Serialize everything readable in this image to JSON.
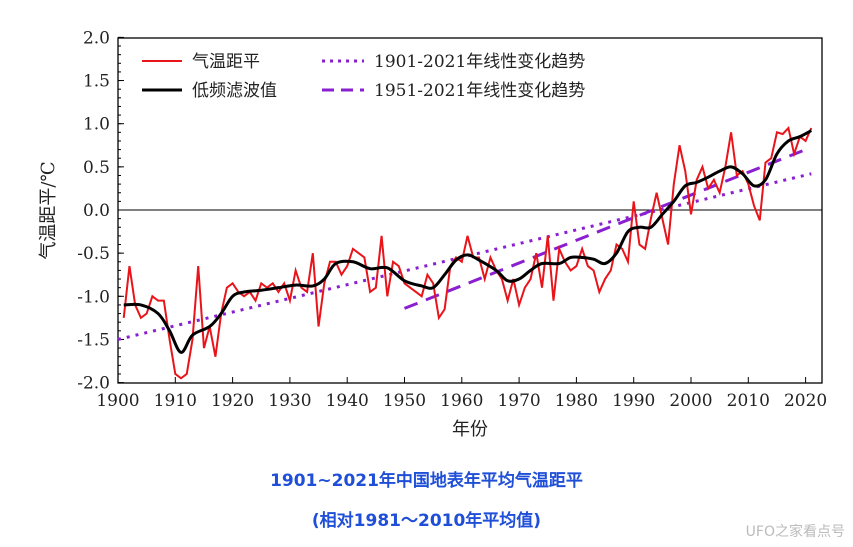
{
  "chart_data": {
    "type": "line",
    "xlabel": "年份",
    "ylabel": "气温距平/℃",
    "xlim": [
      1900,
      2022
    ],
    "ylim": [
      -2.0,
      2.0
    ],
    "xticks": [
      1900,
      1910,
      1920,
      1930,
      1940,
      1950,
      1960,
      1970,
      1980,
      1990,
      2000,
      2010,
      2020
    ],
    "yticks": [
      "2.0",
      "1.5",
      "1.0",
      "0.5",
      "0.0",
      "-0.5",
      "-1.0",
      "-1.5",
      "-2.0"
    ],
    "legend_position": "top-left",
    "colors": {
      "anomaly": "#e8141a",
      "smooth": "#000000",
      "trend": "#8a1fcf",
      "caption": "#1f4fd8"
    },
    "series": [
      {
        "name": "气温距平",
        "style": "solid-red",
        "x_start": 1901,
        "values": [
          -1.25,
          -0.65,
          -1.1,
          -1.25,
          -1.2,
          -1.0,
          -1.05,
          -1.05,
          -1.5,
          -1.9,
          -1.95,
          -1.9,
          -1.5,
          -0.65,
          -1.6,
          -1.35,
          -1.7,
          -1.2,
          -0.9,
          -0.85,
          -0.95,
          -1.0,
          -0.95,
          -1.05,
          -0.85,
          -0.9,
          -0.85,
          -0.95,
          -0.85,
          -1.05,
          -0.7,
          -0.9,
          -0.95,
          -0.5,
          -1.35,
          -0.85,
          -0.6,
          -0.6,
          -0.75,
          -0.65,
          -0.45,
          -0.5,
          -0.55,
          -0.95,
          -0.9,
          -0.3,
          -1.0,
          -0.6,
          -0.65,
          -0.85,
          -0.9,
          -0.95,
          -1.0,
          -0.75,
          -0.85,
          -1.25,
          -1.15,
          -0.65,
          -0.55,
          -0.6,
          -0.3,
          -0.55,
          -0.55,
          -0.8,
          -0.55,
          -0.7,
          -0.8,
          -1.05,
          -0.8,
          -1.1,
          -0.9,
          -0.8,
          -0.5,
          -0.9,
          -0.3,
          -1.05,
          -0.45,
          -0.6,
          -0.7,
          -0.65,
          -0.45,
          -0.65,
          -0.7,
          -0.95,
          -0.8,
          -0.7,
          -0.4,
          -0.45,
          -0.6,
          0.1,
          -0.4,
          -0.45,
          -0.1,
          0.2,
          -0.1,
          -0.4,
          0.3,
          0.75,
          0.45,
          -0.05,
          0.35,
          0.5,
          0.25,
          0.35,
          0.2,
          0.5,
          0.9,
          0.4,
          0.45,
          0.3,
          0.05,
          -0.12,
          0.55,
          0.6,
          0.9,
          0.88,
          0.95,
          0.65,
          0.85,
          0.8,
          0.95
        ]
      },
      {
        "name": "低频滤波值",
        "style": "solid-black",
        "points": [
          [
            1901,
            -1.1
          ],
          [
            1904,
            -1.1
          ],
          [
            1907,
            -1.2
          ],
          [
            1909,
            -1.4
          ],
          [
            1911,
            -1.65
          ],
          [
            1913,
            -1.45
          ],
          [
            1916,
            -1.35
          ],
          [
            1918,
            -1.2
          ],
          [
            1920,
            -1.0
          ],
          [
            1922,
            -0.95
          ],
          [
            1925,
            -0.93
          ],
          [
            1928,
            -0.9
          ],
          [
            1931,
            -0.87
          ],
          [
            1934,
            -0.88
          ],
          [
            1936,
            -0.8
          ],
          [
            1938,
            -0.62
          ],
          [
            1941,
            -0.6
          ],
          [
            1944,
            -0.68
          ],
          [
            1947,
            -0.67
          ],
          [
            1950,
            -0.82
          ],
          [
            1953,
            -0.88
          ],
          [
            1955,
            -0.9
          ],
          [
            1957,
            -0.75
          ],
          [
            1959,
            -0.58
          ],
          [
            1961,
            -0.52
          ],
          [
            1963,
            -0.58
          ],
          [
            1966,
            -0.7
          ],
          [
            1968,
            -0.82
          ],
          [
            1970,
            -0.8
          ],
          [
            1972,
            -0.7
          ],
          [
            1974,
            -0.62
          ],
          [
            1977,
            -0.62
          ],
          [
            1979,
            -0.55
          ],
          [
            1981,
            -0.55
          ],
          [
            1983,
            -0.57
          ],
          [
            1985,
            -0.62
          ],
          [
            1987,
            -0.5
          ],
          [
            1989,
            -0.25
          ],
          [
            1991,
            -0.2
          ],
          [
            1993,
            -0.2
          ],
          [
            1995,
            -0.05
          ],
          [
            1997,
            0.1
          ],
          [
            1999,
            0.28
          ],
          [
            2001,
            0.32
          ],
          [
            2003,
            0.38
          ],
          [
            2005,
            0.45
          ],
          [
            2007,
            0.5
          ],
          [
            2009,
            0.42
          ],
          [
            2011,
            0.28
          ],
          [
            2013,
            0.35
          ],
          [
            2015,
            0.65
          ],
          [
            2017,
            0.8
          ],
          [
            2019,
            0.85
          ],
          [
            2021,
            0.92
          ]
        ]
      },
      {
        "name": "1901-2021年线性变化趋势",
        "style": "dotted-purple",
        "points": [
          [
            1900,
            -1.5
          ],
          [
            2021,
            0.42
          ]
        ]
      },
      {
        "name": "1951-2021年线性变化趋势",
        "style": "dashed-purple",
        "points": [
          [
            1950,
            -1.14
          ],
          [
            2020,
            0.7
          ]
        ]
      }
    ]
  },
  "caption": {
    "line1": "1901~2021年中国地表年平均气温距平",
    "line2": "(相对1981～2010年平均值)"
  },
  "watermark": "UFO之家看点号"
}
